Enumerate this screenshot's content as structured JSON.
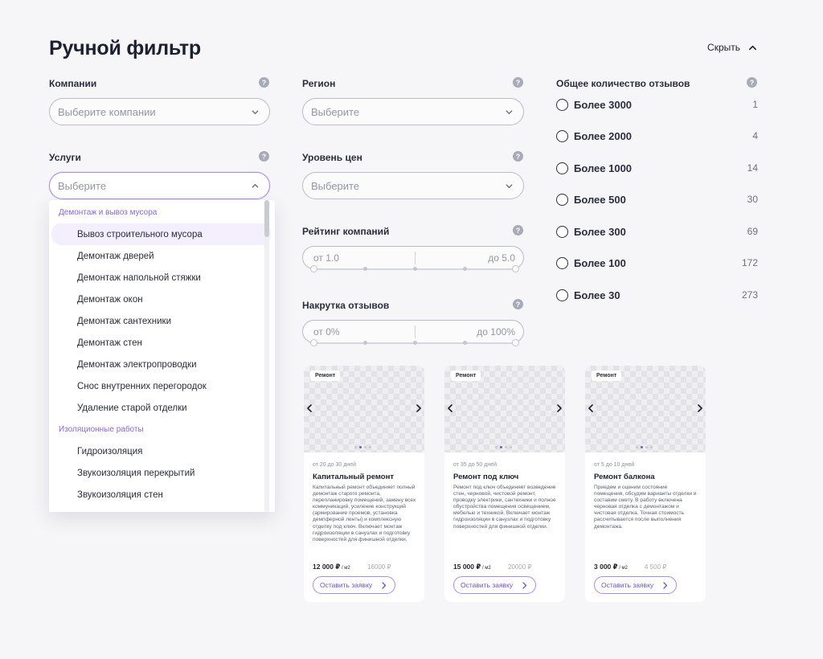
{
  "title": "Ручной фильтр",
  "hide_label": "Скрыть",
  "companies": {
    "label": "Компании",
    "placeholder": "Выберите компании"
  },
  "services": {
    "label": "Услуги",
    "placeholder": "Выберите"
  },
  "region": {
    "label": "Регион",
    "placeholder": "Выберите"
  },
  "price_level": {
    "label": "Уровень цен",
    "placeholder": "Выберите"
  },
  "rating": {
    "label": "Рейтинг компаний",
    "from": "от 1.0",
    "to": "до 5.0"
  },
  "fake_reviews": {
    "label": "Накрутка отзывов",
    "from": "от 0%",
    "to": "до 100%"
  },
  "help_glyph": "?",
  "dropdown": {
    "groups": [
      {
        "name": "Демонтаж и вывоз мусора",
        "items": [
          "Вывоз строительного мусора",
          "Демонтаж дверей",
          "Демонтаж напольной стяжки",
          "Демонтаж окон",
          "Демонтаж сантехники",
          "Демонтаж стен",
          "Демонтаж электропроводки",
          "Снос внутренних перегородок",
          "Удаление старой отделки"
        ]
      },
      {
        "name": "Изоляционные работы",
        "items": [
          "Гидроизоляция",
          "Звукоизоляция перекрытий",
          "Звукоизоляция стен"
        ]
      }
    ]
  },
  "reviews": {
    "label": "Общее количество отзывов",
    "options": [
      {
        "label": "Более 3000",
        "count": "1"
      },
      {
        "label": "Более 2000",
        "count": "4"
      },
      {
        "label": "Более 1000",
        "count": "14"
      },
      {
        "label": "Более 500",
        "count": "30"
      },
      {
        "label": "Более 300",
        "count": "69"
      },
      {
        "label": "Более 100",
        "count": "172"
      },
      {
        "label": "Более 30",
        "count": "273"
      }
    ]
  },
  "cards": [
    {
      "badge": "Ремонт",
      "days": "от 20 до 30 дней",
      "title": "Капитальный ремонт",
      "desc": "Капитальный ремонт объединяет полный демонтаж старого ремонта, перепланировку помещений, замену всех коммуникаций, усиление конструкций (армирование проемов, установка демпферной ленты) и комплексную отделку под ключ. Включает монтаж гидроизоляции в санузлах и подготовку поверхностей для финишной отделки.",
      "price": "12 000 ₽",
      "unit": " / м2",
      "old_price": "16000 ₽",
      "button": "Оставить заявку"
    },
    {
      "badge": "Ремонт",
      "days": "от 35 до 50 дней",
      "title": "Ремонт под ключ",
      "desc": "Ремонт под ключ объединяет возведение стен, черновой, чистовой ремонт, проводку электрики, сантехники и полное обустройства помещения освещением, мебелью и техникой. Включает монтаж гидроизоляции в санузлах и подготовку поверхностей для финишной отделки.",
      "price": "15 000 ₽",
      "unit": " / м2",
      "old_price": "20000 ₽",
      "button": "Оставить заявку"
    },
    {
      "badge": "Ремонт",
      "days": "от 5 до 10 дней",
      "title": "Ремонт балкона",
      "desc": "Приедем и оценим состояние помещения, обсудим варианты отделки и составим смету. В работу включена черновая отделка с демонтажом и чистовая отделка. Точная стоимость рассчитывается после выполнения демонтажа.",
      "price": "3 000 ₽",
      "unit": " / м2",
      "old_price": "4 500 ₽",
      "button": "Оставить заявку"
    }
  ],
  "colors": {
    "accent": "#8a67e6",
    "focus_border": "#a58cf0",
    "background": "#f6f6f8"
  }
}
